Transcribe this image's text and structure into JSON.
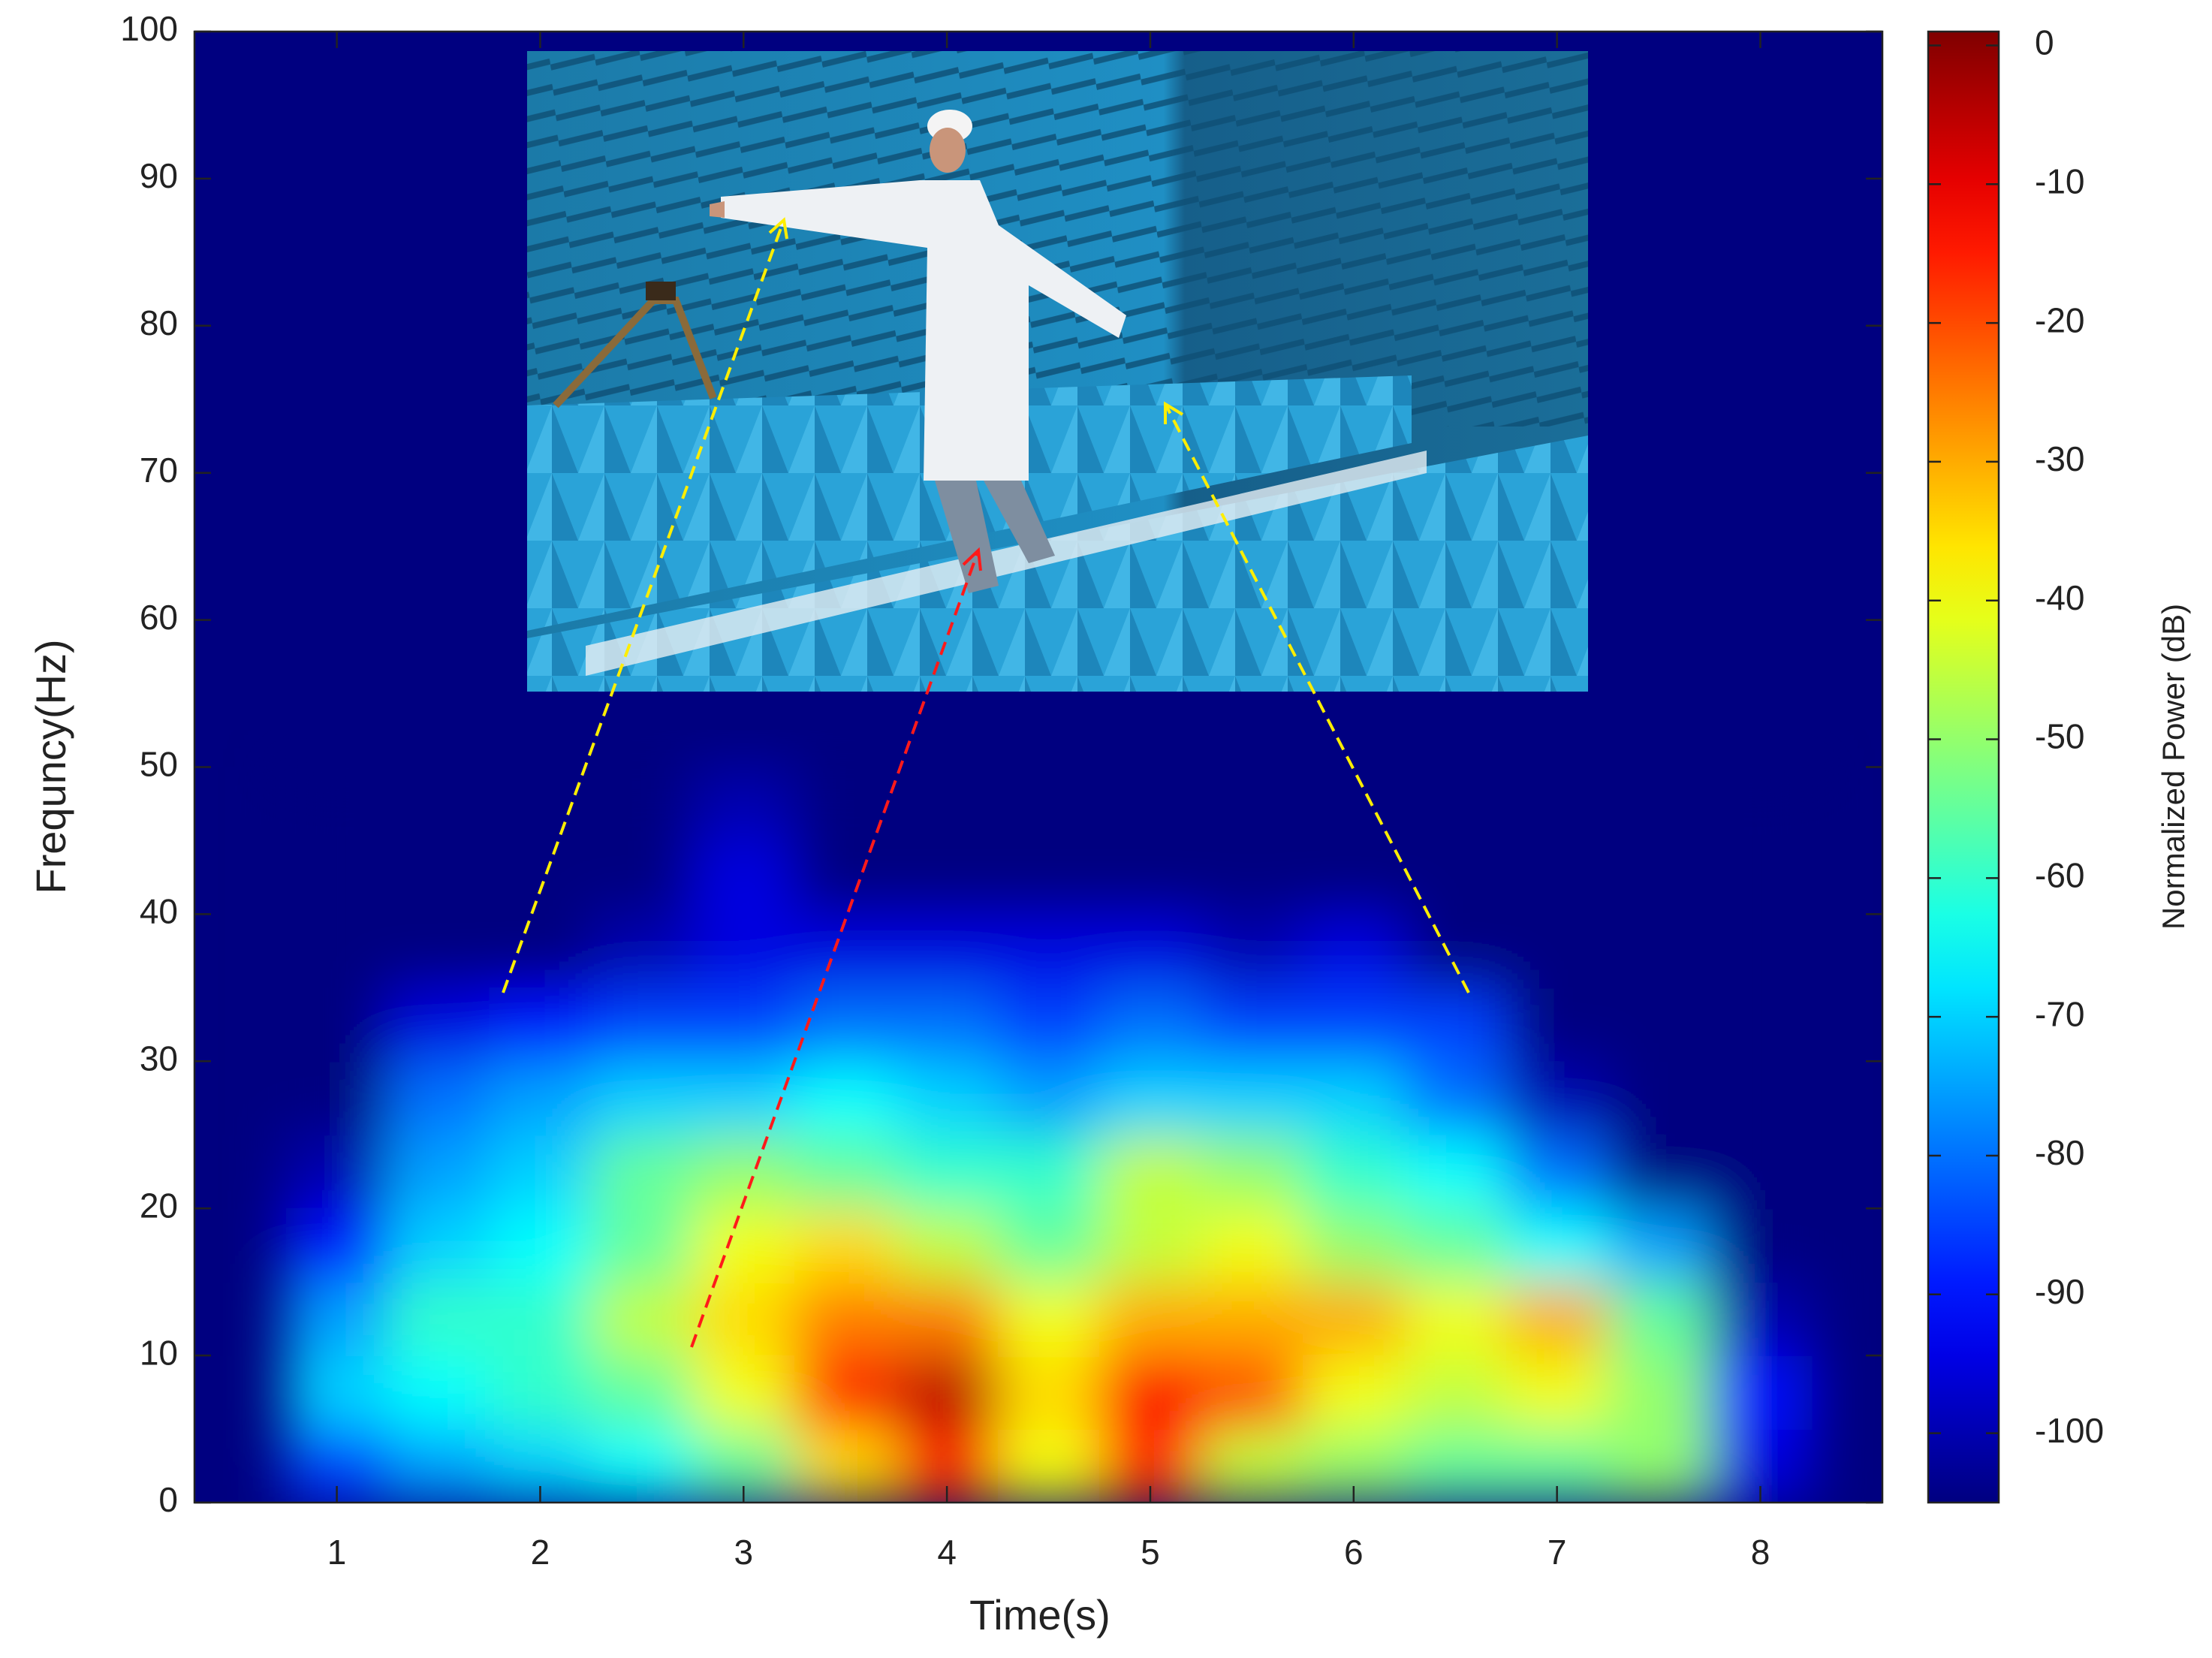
{
  "chart_data": {
    "type": "heatmap",
    "colormap": "jet",
    "xlabel": "Time(s)",
    "ylabel": "Frequncy(Hz)",
    "xlim": [
      0.3,
      8.6
    ],
    "ylim": [
      0,
      100
    ],
    "xticks": [
      1,
      2,
      3,
      4,
      5,
      6,
      7,
      8
    ],
    "yticks": [
      0,
      10,
      20,
      30,
      40,
      50,
      60,
      70,
      80,
      90,
      100
    ],
    "x": [
      1,
      1.5,
      2,
      2.5,
      3,
      3.5,
      4,
      4.5,
      5,
      5.5,
      6,
      6.5,
      7,
      7.5,
      8
    ],
    "y": [
      2.5,
      7.5,
      12.5,
      17.5,
      22.5,
      27.5,
      32.5,
      37.5,
      42.5,
      47.5
    ],
    "z": [
      [
        -85,
        -75,
        -70,
        -65,
        -55,
        -35,
        -15,
        -40,
        -15,
        -45,
        -50,
        -55,
        -55,
        -50,
        -95
      ],
      [
        -70,
        -65,
        -60,
        -55,
        -40,
        -15,
        -5,
        -35,
        -12,
        -20,
        -40,
        -45,
        -40,
        -50,
        -90
      ],
      [
        -75,
        -60,
        -60,
        -45,
        -35,
        -25,
        -25,
        -40,
        -30,
        -30,
        -30,
        -40,
        -30,
        -55,
        -100
      ],
      [
        -90,
        -70,
        -65,
        -55,
        -40,
        -35,
        -45,
        -55,
        -45,
        -40,
        -50,
        -55,
        -65,
        -75,
        -105
      ],
      [
        -100,
        -75,
        -70,
        -55,
        -50,
        -55,
        -60,
        -60,
        -45,
        -50,
        -60,
        -65,
        -80,
        -105,
        -105
      ],
      [
        -105,
        -80,
        -75,
        -70,
        -70,
        -65,
        -70,
        -75,
        -70,
        -70,
        -70,
        -80,
        -100,
        -105,
        -105
      ],
      [
        -105,
        -95,
        -90,
        -85,
        -85,
        -80,
        -80,
        -85,
        -80,
        -85,
        -85,
        -85,
        -105,
        -105,
        -105
      ],
      [
        -105,
        -105,
        -105,
        -100,
        -95,
        -95,
        -95,
        -95,
        -95,
        -100,
        -95,
        -105,
        -105,
        -105,
        -105
      ],
      [
        -105,
        -105,
        -105,
        -105,
        -95,
        -105,
        -105,
        -105,
        -105,
        -105,
        -105,
        -105,
        -105,
        -105,
        -105
      ],
      [
        -105,
        -105,
        -105,
        -105,
        -100,
        -105,
        -105,
        -105,
        -105,
        -105,
        -105,
        -105,
        -105,
        -105,
        -105
      ]
    ],
    "colorbar": {
      "label": "Normalized Power (dB)",
      "lim": [
        -105,
        1
      ],
      "ticks": [
        0,
        -10,
        -20,
        -30,
        -40,
        -50,
        -60,
        -70,
        -80,
        -90,
        -100
      ]
    }
  }
}
